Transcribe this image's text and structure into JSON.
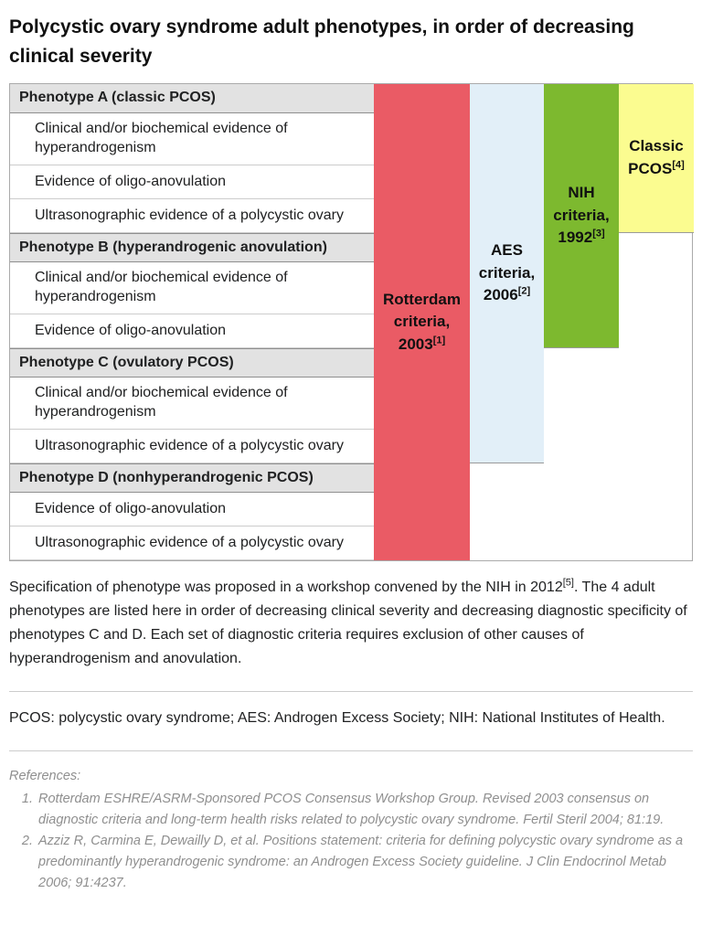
{
  "page": {
    "title": "Polycystic ovary syndrome adult phenotypes, in order of decreasing clinical severity"
  },
  "figure": {
    "rows": [
      {
        "type": "header",
        "text": "Phenotype A (classic PCOS)"
      },
      {
        "type": "criterion",
        "text": "Clinical and/or biochemical evidence of hyperandrogenism"
      },
      {
        "type": "criterion",
        "text": "Evidence of oligo-anovulation"
      },
      {
        "type": "criterion",
        "text": "Ultrasonographic evidence of a polycystic ovary"
      },
      {
        "type": "header",
        "text": "Phenotype B (hyperandrogenic anovulation)"
      },
      {
        "type": "criterion",
        "text": "Clinical and/or biochemical evidence of hyperandrogenism"
      },
      {
        "type": "criterion",
        "text": "Evidence of oligo-anovulation"
      },
      {
        "type": "header",
        "text": "Phenotype C (ovulatory PCOS)"
      },
      {
        "type": "criterion",
        "text": "Clinical and/or biochemical evidence of hyperandrogenism"
      },
      {
        "type": "criterion",
        "text": "Ultrasonographic evidence of a polycystic ovary"
      },
      {
        "type": "header",
        "text": "Phenotype D (nonhyperandrogenic PCOS)"
      },
      {
        "type": "criterion",
        "text": "Evidence of oligo-anovulation"
      },
      {
        "type": "criterion",
        "text": "Ultrasonographic evidence of a polycystic ovary"
      }
    ],
    "columns": [
      {
        "id": "rotterdam",
        "label": "Rotterdam criteria, 2003",
        "sup": "[1]",
        "color": "#ea5b65",
        "covers": "Phenotypes A, B, C, D"
      },
      {
        "id": "aes",
        "label": "AES criteria, 2006",
        "sup": "[2]",
        "color": "#e2eff8",
        "covers": "Phenotypes A, B, C"
      },
      {
        "id": "nih",
        "label": "NIH criteria, 1992",
        "sup": "[3]",
        "color": "#7db92f",
        "covers": "Phenotypes A, B"
      },
      {
        "id": "classic",
        "label": "Classic PCOS",
        "sup": "[4]",
        "color": "#fbfc90",
        "covers": "Phenotype A"
      }
    ],
    "header_row_color": "#e2e2e2"
  },
  "caption": {
    "before_sup": "Specification of phenotype was proposed in a workshop convened by the NIH in 2012",
    "sup": "[5]",
    "after_sup": ". The 4 adult phenotypes are listed here in order of decreasing clinical severity and decreasing diagnostic specificity of phenotypes C and D. Each set of diagnostic criteria requires exclusion of other causes of hyperandrogenism and anovulation."
  },
  "abbreviations": "PCOS: polycystic ovary syndrome; AES: Androgen Excess Society; NIH: National Institutes of Health.",
  "references": {
    "heading": "References:",
    "items": [
      "Rotterdam ESHRE/ASRM-Sponsored PCOS Consensus Workshop Group. Revised 2003 consensus on diagnostic criteria and long-term health risks related to polycystic ovary syndrome. Fertil Steril 2004; 81:19.",
      "Azziz R, Carmina E, Dewailly D, et al. Positions statement: criteria for defining polycystic ovary syndrome as a predominantly hyperandrogenic syndrome: an Androgen Excess Society guideline. J Clin Endocrinol Metab 2006; 91:4237."
    ]
  }
}
